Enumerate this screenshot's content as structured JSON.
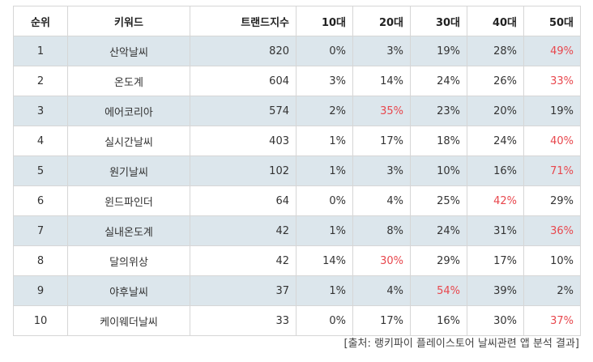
{
  "table": {
    "headers": [
      "순위",
      "키워드",
      "트랜드지수",
      "10대",
      "20대",
      "30대",
      "40대",
      "50대"
    ],
    "rows": [
      {
        "rank": "1",
        "keyword": "산악날씨",
        "index": "820",
        "ages": [
          "0%",
          "3%",
          "19%",
          "28%",
          "49%"
        ],
        "highlight": 4
      },
      {
        "rank": "2",
        "keyword": "온도계",
        "index": "604",
        "ages": [
          "3%",
          "14%",
          "24%",
          "26%",
          "33%"
        ],
        "highlight": 4
      },
      {
        "rank": "3",
        "keyword": "에어코리아",
        "index": "574",
        "ages": [
          "2%",
          "35%",
          "23%",
          "20%",
          "19%"
        ],
        "highlight": 1
      },
      {
        "rank": "4",
        "keyword": "실시간날씨",
        "index": "403",
        "ages": [
          "1%",
          "17%",
          "18%",
          "24%",
          "40%"
        ],
        "highlight": 4
      },
      {
        "rank": "5",
        "keyword": "원기날씨",
        "index": "102",
        "ages": [
          "1%",
          "3%",
          "10%",
          "16%",
          "71%"
        ],
        "highlight": 4
      },
      {
        "rank": "6",
        "keyword": "윈드파인더",
        "index": "64",
        "ages": [
          "0%",
          "4%",
          "25%",
          "42%",
          "29%"
        ],
        "highlight": 3
      },
      {
        "rank": "7",
        "keyword": "실내온도계",
        "index": "42",
        "ages": [
          "1%",
          "8%",
          "24%",
          "31%",
          "36%"
        ],
        "highlight": 4
      },
      {
        "rank": "8",
        "keyword": "달의위상",
        "index": "42",
        "ages": [
          "14%",
          "30%",
          "29%",
          "17%",
          "10%"
        ],
        "highlight": 1
      },
      {
        "rank": "9",
        "keyword": "야후날씨",
        "index": "37",
        "ages": [
          "1%",
          "4%",
          "54%",
          "39%",
          "2%"
        ],
        "highlight": 2
      },
      {
        "rank": "10",
        "keyword": "케이웨더날씨",
        "index": "33",
        "ages": [
          "0%",
          "17%",
          "16%",
          "30%",
          "37%"
        ],
        "highlight": 4
      }
    ]
  },
  "source": "[출처: 랭키파이 플레이스토어 날씨관련 앱 분석 결과]",
  "colors": {
    "highlight": "#e8474d",
    "row_shade": "#dce6ec",
    "border": "#d6d6d6"
  }
}
